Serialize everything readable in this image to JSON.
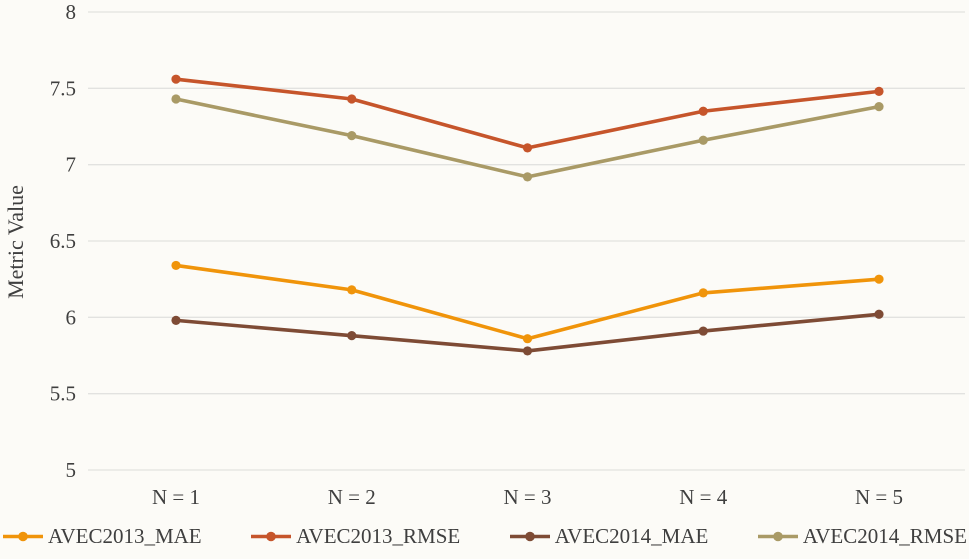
{
  "chart_data": {
    "type": "line",
    "title": "",
    "xlabel": "",
    "ylabel": "Metric Value",
    "categories": [
      "N = 1",
      "N = 2",
      "N = 3",
      "N = 4",
      "N = 5"
    ],
    "series": [
      {
        "name": "AVEC2013_MAE",
        "color": "#F0940A",
        "values": [
          6.34,
          6.18,
          5.86,
          6.16,
          6.25
        ]
      },
      {
        "name": "AVEC2013_RMSE",
        "color": "#C6552B",
        "values": [
          7.56,
          7.43,
          7.11,
          7.35,
          7.48
        ]
      },
      {
        "name": "AVEC2014_MAE",
        "color": "#7E4B35",
        "values": [
          5.98,
          5.88,
          5.78,
          5.91,
          6.02
        ]
      },
      {
        "name": "AVEC2014_RMSE",
        "color": "#A99A66",
        "values": [
          7.43,
          7.19,
          6.92,
          7.16,
          7.38
        ]
      }
    ],
    "ylim": [
      5,
      8
    ],
    "yticks": [
      8,
      7.5,
      7,
      6.5,
      6,
      5.5,
      5
    ],
    "grid": true,
    "grid_color": "#E2E2E0",
    "text_color": "#3F3F3F",
    "background_color": "#FCFBF7",
    "legend_position": "bottom"
  }
}
